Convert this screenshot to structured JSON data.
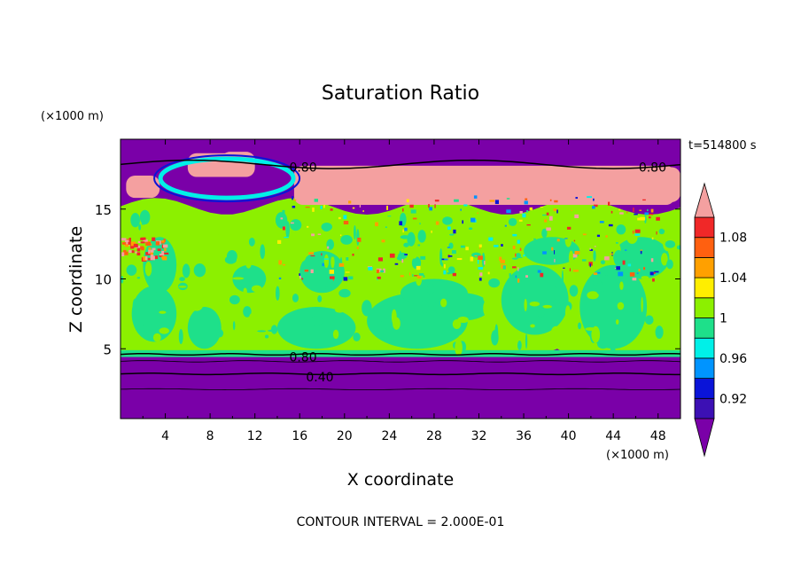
{
  "chart_data": {
    "type": "heatmap",
    "title": "Saturation Ratio",
    "xlabel": "X coordinate",
    "ylabel": "Z coordinate",
    "x_unit": "(×1000 m)",
    "y_unit": "(×1000 m)",
    "time_label": "t=514800 s",
    "footer": "CONTOUR INTERVAL = 2.000E-01",
    "xlim": [
      0,
      50
    ],
    "ylim": [
      0,
      20
    ],
    "x_ticks": [
      4,
      8,
      12,
      16,
      20,
      24,
      28,
      32,
      36,
      40,
      44,
      48
    ],
    "y_ticks": [
      5,
      10,
      15
    ],
    "colorbar": {
      "boundaries": [
        0.9,
        0.92,
        0.94,
        0.96,
        0.98,
        1,
        1.02,
        1.04,
        1.06,
        1.08,
        1.1
      ],
      "tick_labels": [
        "1.08",
        "1.04",
        "1",
        "0.96",
        "0.92"
      ],
      "tick_values": [
        1.08,
        1.04,
        1,
        0.96,
        0.92
      ],
      "colors": [
        "#7a00a8",
        "#3c10b4",
        "#0a14d8",
        "#0094ff",
        "#00f0e8",
        "#1ee08a",
        "#8cf000",
        "#ffee00",
        "#ffa000",
        "#ff6010",
        "#f02828",
        "#f4a0a0"
      ]
    },
    "contour_labels": [
      {
        "text": "0.80",
        "x": 16.3,
        "z": 18.0
      },
      {
        "text": "0.80",
        "x": 47.5,
        "z": 18.0
      },
      {
        "text": "0.80",
        "x": 16.3,
        "z": 4.4
      },
      {
        "text": "0.40",
        "x": 17.8,
        "z": 3.0
      }
    ]
  }
}
